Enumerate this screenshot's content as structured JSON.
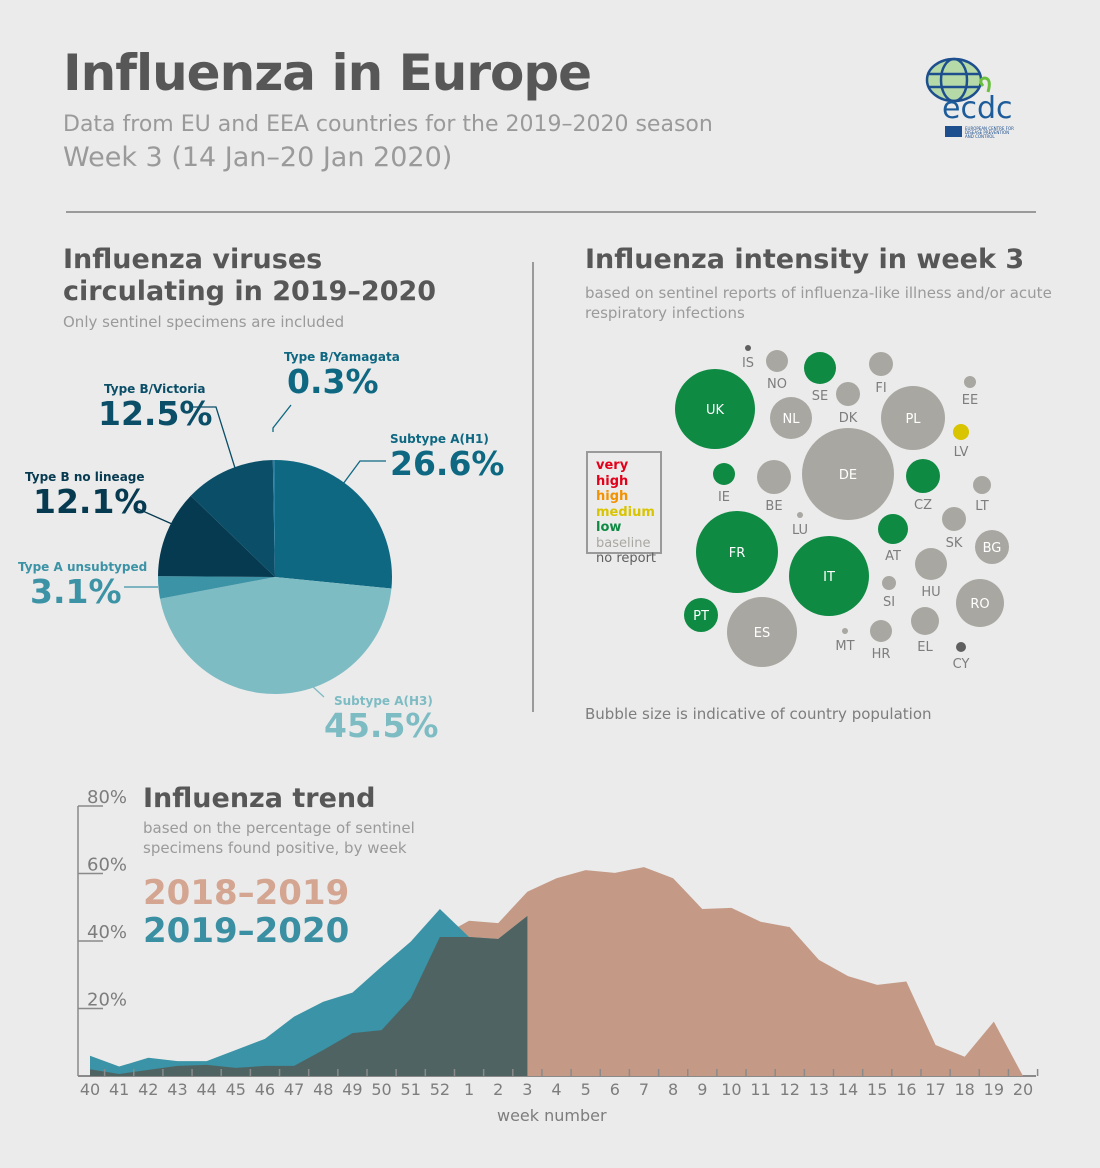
{
  "header": {
    "title": "Influenza in Europe",
    "subtitle": "Data from EU and EEA countries for the 2019–2020 season",
    "week": "Week 3 (14 Jan–20 Jan 2020)",
    "logo_text": "ecdc",
    "logo_subtext": "EUROPEAN CENTRE FOR DISEASE PREVENTION AND CONTROL"
  },
  "chart_data": [
    {
      "type": "pie",
      "title": "Influenza viruses circulating in 2019–2020",
      "subtitle": "Only sentinel specimens are included",
      "slices": [
        {
          "label": "Subtype A(H1)",
          "display": "26.6%",
          "value": 26.6,
          "color": "#0e6882"
        },
        {
          "label": "Subtype A(H3)",
          "display": "45.5%",
          "value": 45.5,
          "color": "#7ebcc4"
        },
        {
          "label": "Type A unsubtyped",
          "display": "3.1%",
          "value": 3.1,
          "color": "#3c93a6"
        },
        {
          "label": "Type B no lineage",
          "display": "12.1%",
          "value": 12.1,
          "color": "#063a50"
        },
        {
          "label": "Type B/Victoria",
          "display": "12.5%",
          "value": 12.5,
          "color": "#0b4e68"
        },
        {
          "label": "Type B/Yamagata",
          "display": "0.3%",
          "value": 0.3,
          "color": "#2a7fa0"
        }
      ]
    },
    {
      "type": "bubble",
      "title": "Influenza intensity in week 3",
      "subtitle": "based on sentinel reports of influenza-like illness and/or acute respiratory infections",
      "footnote": "Bubble size is indicative of country population",
      "legend": [
        {
          "key": "very_high",
          "label": "very high",
          "color": "#e3001b"
        },
        {
          "key": "high",
          "label": "high",
          "color": "#f39200"
        },
        {
          "key": "medium",
          "label": "medium",
          "color": "#d9c400"
        },
        {
          "key": "low",
          "label": "low",
          "color": "#0e8a43"
        },
        {
          "key": "baseline",
          "label": "baseline",
          "color": "#a9a7a1"
        },
        {
          "key": "no_report",
          "label": "no report",
          "color": "#5f5f5f"
        }
      ],
      "countries": [
        {
          "code": "UK",
          "level": "low"
        },
        {
          "code": "IS",
          "level": "no_report"
        },
        {
          "code": "NO",
          "level": "baseline"
        },
        {
          "code": "SE",
          "level": "low"
        },
        {
          "code": "FI",
          "level": "baseline"
        },
        {
          "code": "DK",
          "level": "baseline"
        },
        {
          "code": "NL",
          "level": "baseline"
        },
        {
          "code": "PL",
          "level": "baseline"
        },
        {
          "code": "EE",
          "level": "baseline"
        },
        {
          "code": "LV",
          "level": "medium"
        },
        {
          "code": "DE",
          "level": "baseline"
        },
        {
          "code": "IE",
          "level": "low"
        },
        {
          "code": "BE",
          "level": "baseline"
        },
        {
          "code": "CZ",
          "level": "low"
        },
        {
          "code": "LT",
          "level": "baseline"
        },
        {
          "code": "LU",
          "level": "baseline"
        },
        {
          "code": "AT",
          "level": "low"
        },
        {
          "code": "SK",
          "level": "baseline"
        },
        {
          "code": "BG",
          "level": "baseline"
        },
        {
          "code": "FR",
          "level": "low"
        },
        {
          "code": "IT",
          "level": "low"
        },
        {
          "code": "HU",
          "level": "baseline"
        },
        {
          "code": "SI",
          "level": "baseline"
        },
        {
          "code": "RO",
          "level": "baseline"
        },
        {
          "code": "PT",
          "level": "low"
        },
        {
          "code": "ES",
          "level": "baseline"
        },
        {
          "code": "MT",
          "level": "baseline"
        },
        {
          "code": "HR",
          "level": "baseline"
        },
        {
          "code": "EL",
          "level": "baseline"
        },
        {
          "code": "CY",
          "level": "no_report"
        }
      ]
    },
    {
      "type": "area",
      "title": "Influenza trend",
      "subtitle": "based on the percentage of sentinel specimens found positive, by week",
      "xlabel": "week number",
      "ylabel": "",
      "ylim": [
        0,
        80
      ],
      "yticks": [
        "20%",
        "40%",
        "60%",
        "80%"
      ],
      "ytick_values": [
        20,
        40,
        60,
        80
      ],
      "categories": [
        "40",
        "41",
        "42",
        "43",
        "44",
        "45",
        "46",
        "47",
        "48",
        "49",
        "50",
        "51",
        "52",
        "1",
        "2",
        "3",
        "4",
        "5",
        "6",
        "7",
        "8",
        "9",
        "10",
        "11",
        "12",
        "13",
        "14",
        "15",
        "16",
        "17",
        "18",
        "19",
        "20"
      ],
      "series": [
        {
          "name": "2018–2019",
          "color": "#c49a87",
          "values": [
            2,
            0.6,
            1.8,
            3,
            3.3,
            2.4,
            3,
            3,
            7.7,
            12.7,
            13.6,
            23,
            41.2,
            46,
            45.3,
            54.6,
            58.6,
            61,
            60.2,
            61.9,
            58.6,
            49.5,
            49.8,
            45.7,
            44.1,
            34.4,
            29.6,
            27,
            28,
            9.2,
            5.7,
            16.1,
            0
          ]
        },
        {
          "name": "2019–2020",
          "color": "#3a93a6",
          "values": [
            6,
            2.8,
            5.4,
            4.4,
            4.4,
            7.7,
            11,
            17.6,
            22,
            24.7,
            32.4,
            39.8,
            49.5,
            41.2,
            40.6,
            47.4,
            null,
            null,
            null,
            null,
            null,
            null,
            null,
            null,
            null,
            null,
            null,
            null,
            null,
            null,
            null,
            null,
            null
          ]
        }
      ],
      "overlap_color": "#4f6462"
    }
  ]
}
